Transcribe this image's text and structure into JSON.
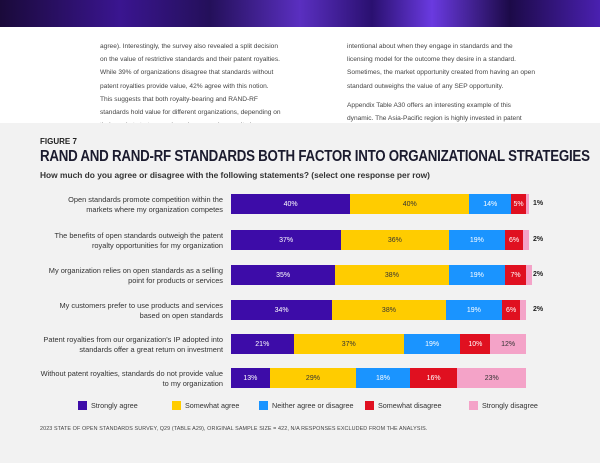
{
  "body_text": {
    "left": "agree). Interestingly, the survey also revealed a split decision on the value of restrictive standards and their patent royalties. While 39% of organizations disagree that standards without patent royalties provide value, 42% agree with this notion. This suggests that both royalty-bearing and RAND-RF standards hold value for different organizations, depending on their market strategy and previous experiences. It also suggests that organizations are",
    "right_p1": "intentional about when they engage in standards and the licensing model for the outcome they desire in a standard. Sometimes, the market opportunity created from having an open standard outweighs the value of any SEP opportunity.",
    "right_p2": "Appendix Table A30 offers an interesting example of this dynamic. The Asia-Pacific region is highly invested in patent royalties, with"
  },
  "figure": {
    "label": "FIGURE 7",
    "footnote": "2023 STATE OF OPEN STANDARDS SURVEY, Q29 (TABLE A29), ORIGINAL SAMPLE SIZE = 422, N/A RESPONSES EXCLUDED FROM THE ANALYSIS."
  },
  "chart_data": {
    "type": "bar",
    "orientation": "horizontal-stacked-100",
    "title": "RAND AND RAND-RF STANDARDS BOTH FACTOR INTO ORGANIZATIONAL STRATEGIES",
    "subtitle": "How much do you agree or disagree with the following statements? (select one response per row)",
    "categories": [
      "Open standards promote competition within the markets where my organization competes",
      "The benefits of open standards outweigh the patent royalty opportunities for my organization",
      "My organization relies on open standards as a selling point for products or services",
      "My customers prefer to use products and services based on open standards",
      "Patent royalties from our organization's IP adopted into standards offer a great return on investment",
      "Without patent royalties, standards do not provide value to my organization"
    ],
    "series": [
      {
        "name": "Strongly agree",
        "color": "#3d0ca8",
        "text": "#fff",
        "values": [
          40,
          37,
          35,
          34,
          21,
          13
        ]
      },
      {
        "name": "Somewhat agree",
        "color": "#ffcc00",
        "text": "#333",
        "values": [
          40,
          36,
          38,
          38,
          37,
          29
        ]
      },
      {
        "name": "Neither agree or disagree",
        "color": "#1a94ff",
        "text": "#fff",
        "values": [
          14,
          19,
          19,
          19,
          19,
          18
        ]
      },
      {
        "name": "Somewhat disagree",
        "color": "#e01020",
        "text": "#fff",
        "values": [
          5,
          6,
          7,
          6,
          10,
          16
        ]
      },
      {
        "name": "Strongly disagree",
        "color": "#f4a3c8",
        "text": "#333",
        "values": [
          1,
          2,
          2,
          2,
          12,
          23
        ]
      }
    ],
    "legend_position": "bottom"
  }
}
